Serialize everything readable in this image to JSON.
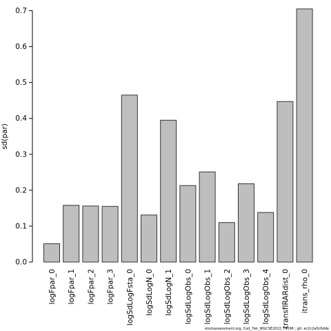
{
  "chart_data": {
    "type": "bar",
    "ylabel": "sd(par)",
    "ylim": [
      0,
      0.7
    ],
    "yticks": [
      "0.0",
      "0.1",
      "0.2",
      "0.3",
      "0.4",
      "0.5",
      "0.6",
      "0.7"
    ],
    "categories": [
      "logFpar_0",
      "logFpar_1",
      "logFpar_2",
      "logFpar_3",
      "logSdLogFsta_0",
      "logSdLogN_0",
      "logSdLogN_1",
      "logSdLogObs_0",
      "logSdLogObs_1",
      "logSdLogObs_2",
      "logSdLogObs_3",
      "logSdLogObs_4",
      "transfIRARdist_0",
      "itrans_rho_0"
    ],
    "values": [
      0.051,
      0.158,
      0.156,
      0.155,
      0.465,
      0.131,
      0.395,
      0.213,
      0.251,
      0.11,
      0.218,
      0.138,
      0.447,
      0.705
    ],
    "bar_color": "#bebebe",
    "footer": "stockassessment.org, Cod_7ek_WGCSE2022, r4096 ; git: ec2c2a0c6dde"
  }
}
